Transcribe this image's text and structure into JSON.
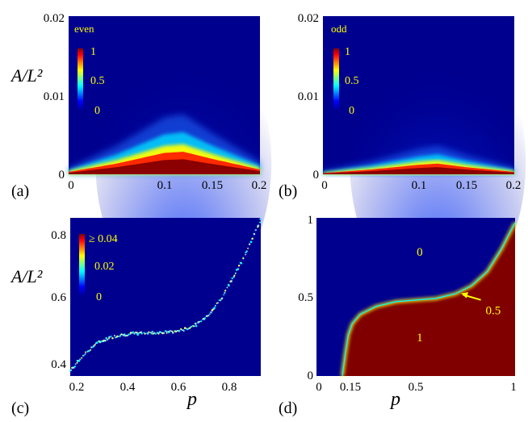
{
  "figure_labels": {
    "a": "(a)",
    "b": "(b)",
    "c": "(c)",
    "d": "(d)"
  },
  "colors": {
    "background": "#00008f",
    "annotation_text": "#ffff00",
    "colormap": [
      "#00008f",
      "#0000ff",
      "#00ffff",
      "#ffff00",
      "#ff0000",
      "#800000"
    ]
  },
  "chart_data": [
    {
      "id": "a",
      "type": "heatmap",
      "title": "",
      "annotation": "even",
      "xlabel": "",
      "ylabel": "A/L²",
      "xlim": [
        0,
        0.2
      ],
      "ylim": [
        0,
        0.02
      ],
      "x_ticks": [
        0,
        0.1,
        0.15,
        0.2
      ],
      "x_tick_labels": [
        "0",
        "0.1",
        "0.15",
        "0.2"
      ],
      "y_ticks": [
        0,
        0.01,
        0.02
      ],
      "y_tick_labels": [
        "0",
        "0.01",
        "0.02"
      ],
      "colorbar": {
        "min": 0,
        "max": 1,
        "tick_labels": [
          "1",
          "0.5",
          "0"
        ]
      },
      "ridge": {
        "x": [
          0,
          0.05,
          0.1,
          0.12,
          0.15,
          0.2
        ],
        "y_center": [
          0.0002,
          0.0009,
          0.0018,
          0.0019,
          0.0013,
          0.0004
        ],
        "peak_x": 0.12
      }
    },
    {
      "id": "b",
      "type": "heatmap",
      "title": "",
      "annotation": "odd",
      "xlabel": "",
      "ylabel": "",
      "xlim": [
        0,
        0.2
      ],
      "ylim": [
        0,
        0.02
      ],
      "x_ticks": [
        0,
        0.1,
        0.15,
        0.2
      ],
      "x_tick_labels": [
        "0",
        "0.1",
        "0.15",
        "0.2"
      ],
      "y_ticks": [
        0,
        0.01,
        0.02
      ],
      "y_tick_labels": [
        "0",
        "0.01",
        "0.02"
      ],
      "colorbar": {
        "min": 0,
        "max": 1,
        "tick_labels": [
          "1",
          "0.5",
          "0"
        ]
      },
      "ridge": {
        "x": [
          0,
          0.05,
          0.1,
          0.12,
          0.15,
          0.2
        ],
        "y_center": [
          0.0001,
          0.0004,
          0.0008,
          0.0009,
          0.0006,
          0.0002
        ],
        "peak_x": 0.12
      }
    },
    {
      "id": "c",
      "type": "scatter",
      "title": "",
      "xlabel": "p",
      "ylabel": "A/L²",
      "xlim": [
        0.2,
        0.95
      ],
      "ylim": [
        0.38,
        0.85
      ],
      "x_ticks": [
        0.2,
        0.4,
        0.6,
        0.8
      ],
      "x_tick_labels": [
        "0.2",
        "0.4",
        "0.6",
        "0.8"
      ],
      "y_ticks": [
        0.4,
        0.6,
        0.8
      ],
      "y_tick_labels": [
        "0.4",
        "0.6",
        "0.8"
      ],
      "colorbar": {
        "min": 0,
        "max": 0.04,
        "tick_labels": [
          "≥ 0.04",
          "0.02",
          "0"
        ]
      },
      "curve": {
        "x": [
          0.2,
          0.25,
          0.3,
          0.35,
          0.4,
          0.45,
          0.5,
          0.55,
          0.6,
          0.65,
          0.7,
          0.75,
          0.8,
          0.85,
          0.9,
          0.95
        ],
        "y": [
          0.395,
          0.44,
          0.475,
          0.493,
          0.502,
          0.506,
          0.508,
          0.509,
          0.511,
          0.518,
          0.534,
          0.566,
          0.617,
          0.684,
          0.76,
          0.845
        ]
      }
    },
    {
      "id": "d",
      "type": "heatmap",
      "title": "",
      "xlabel": "p",
      "ylabel": "",
      "xlim": [
        0,
        1
      ],
      "ylim": [
        0,
        1
      ],
      "x_ticks": [
        0,
        0.15,
        0.5,
        1
      ],
      "x_tick_labels": [
        "0",
        "0.15",
        "0.5",
        "1"
      ],
      "y_ticks": [
        0,
        0.5,
        1
      ],
      "y_tick_labels": [
        "0",
        "0.5",
        "1"
      ],
      "region_labels": [
        {
          "text": "0",
          "x": 0.52,
          "y": 0.76
        },
        {
          "text": "1",
          "x": 0.52,
          "y": 0.22
        }
      ],
      "arrow_annotation": {
        "text": "0.5",
        "x": 0.86,
        "y": 0.42,
        "target_x": 0.72,
        "target_y": 0.53
      },
      "boundary": {
        "x": [
          0.13,
          0.145,
          0.16,
          0.18,
          0.22,
          0.3,
          0.4,
          0.5,
          0.6,
          0.7,
          0.78,
          0.86,
          0.93,
          1.0
        ],
        "y": [
          0.0,
          0.14,
          0.26,
          0.33,
          0.39,
          0.44,
          0.47,
          0.48,
          0.49,
          0.52,
          0.57,
          0.66,
          0.8,
          0.97
        ]
      }
    }
  ]
}
